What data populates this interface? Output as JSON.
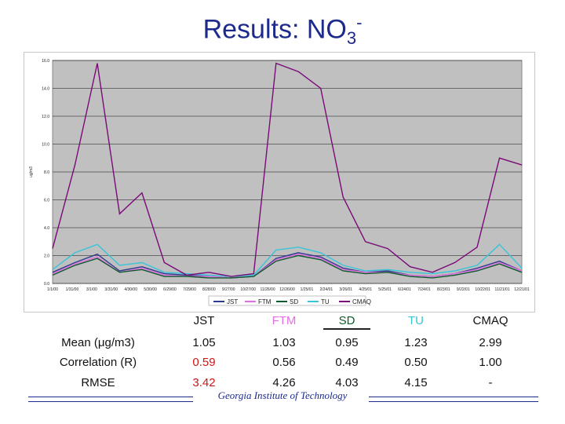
{
  "slide": {
    "title_main": "Results: NO",
    "title_sub": "3",
    "title_sup": "-",
    "footer": "Georgia Institute of Technology"
  },
  "chart_data": {
    "type": "line",
    "ylabel": "ug/m3",
    "ylim": [
      0,
      16
    ],
    "y_ticks": [
      "0.0",
      "2.0",
      "4.0",
      "6.0",
      "8.0",
      "10.0",
      "12.0",
      "14.0",
      "16.0"
    ],
    "x_ticks": [
      "1/1/00",
      "1/31/00",
      "3/1/00",
      "3/31/00",
      "4/30/00",
      "5/30/00",
      "6/29/00",
      "7/29/00",
      "8/28/00",
      "9/27/00",
      "10/27/00",
      "11/26/00",
      "12/26/00",
      "1/25/01",
      "2/24/01",
      "3/26/01",
      "4/25/01",
      "5/25/01",
      "6/24/01",
      "7/24/01",
      "8/23/01",
      "9/22/01",
      "10/22/01",
      "11/21/01",
      "12/21/01"
    ],
    "grid": true,
    "legend_position": "bottom",
    "background": "#c0c0c0",
    "series": [
      {
        "name": "JST",
        "color": "#2e3a8c",
        "values": [
          0.8,
          1.5,
          2.1,
          0.9,
          1.2,
          0.7,
          0.6,
          0.5,
          0.4,
          0.5,
          1.8,
          2.2,
          1.9,
          1.1,
          0.8,
          0.9,
          0.6,
          0.5,
          0.7,
          1.1,
          1.6,
          0.9
        ]
      },
      {
        "name": "FTM",
        "color": "#e36fe0",
        "values": [
          0.7,
          1.4,
          1.9,
          0.8,
          1.1,
          0.6,
          0.5,
          0.5,
          0.4,
          0.5,
          1.7,
          2.1,
          1.8,
          1.0,
          0.8,
          0.8,
          0.6,
          0.5,
          0.7,
          1.0,
          1.5,
          0.9
        ]
      },
      {
        "name": "SD",
        "color": "#0c5a2c",
        "values": [
          0.6,
          1.3,
          1.8,
          0.8,
          1.0,
          0.5,
          0.5,
          0.4,
          0.4,
          0.5,
          1.6,
          2.0,
          1.7,
          0.9,
          0.7,
          0.8,
          0.5,
          0.4,
          0.6,
          0.9,
          1.4,
          0.8
        ]
      },
      {
        "name": "TU",
        "color": "#39c4d8",
        "values": [
          1.0,
          2.2,
          2.8,
          1.3,
          1.5,
          0.8,
          0.7,
          0.6,
          0.5,
          0.6,
          2.4,
          2.6,
          2.2,
          1.3,
          0.9,
          1.0,
          0.8,
          0.7,
          0.9,
          1.3,
          2.8,
          1.1
        ]
      },
      {
        "name": "CMAQ",
        "color": "#7a0a78",
        "values": [
          2.5,
          8.5,
          15.8,
          5.0,
          6.5,
          1.5,
          0.6,
          0.8,
          0.5,
          0.7,
          15.8,
          15.2,
          14.0,
          6.2,
          3.0,
          2.5,
          1.2,
          0.8,
          1.5,
          2.6,
          9.0,
          8.5
        ]
      }
    ]
  },
  "stats_table": {
    "columns": [
      "JST",
      "FTM",
      "SD",
      "TU",
      "CMAQ"
    ],
    "rows": [
      {
        "label": "Mean (μg/m3)",
        "values": [
          "1.05",
          "1.03",
          "0.95",
          "1.23",
          "2.99"
        ]
      },
      {
        "label": "Correlation (R)",
        "values": [
          "0.59",
          "0.56",
          "0.49",
          "0.50",
          "1.00"
        ]
      },
      {
        "label": "RMSE",
        "values": [
          "3.42",
          "4.26",
          "4.03",
          "4.15",
          "-"
        ]
      }
    ]
  }
}
